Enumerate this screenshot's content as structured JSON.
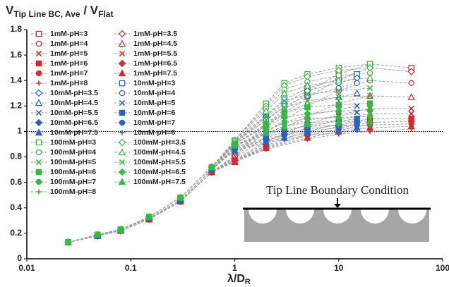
{
  "chart_data": {
    "type": "line",
    "ylabel_parts": [
      {
        "text": "V"
      },
      {
        "text": "Tip Line BC, Ave",
        "sub": true
      },
      {
        "text": " / V"
      },
      {
        "text": "Flat",
        "sub": true
      }
    ],
    "xlabel_parts": [
      {
        "text": "λ/D"
      },
      {
        "text": "R",
        "sub": true
      }
    ],
    "annotation": "Tip Line Boundary Condition",
    "xscale": "log",
    "xlim": [
      0.01,
      100
    ],
    "xticks": [
      0.01,
      0.1,
      1,
      10,
      100
    ],
    "ylim": [
      0,
      1.8
    ],
    "yticks": [
      0,
      0.2,
      0.4,
      0.6,
      0.8,
      1,
      1.2,
      1.4,
      1.6,
      1.8
    ],
    "hline": 1,
    "legend": "upper left",
    "legend_columns": 2,
    "line_color": "#9a9a9a",
    "series": [
      {
        "name": "1mM-pH=3",
        "color": "#d62a2a",
        "marker": "square",
        "x": [
          0.025,
          0.048,
          0.08,
          0.15,
          0.3,
          0.6,
          1,
          2,
          5,
          10,
          20,
          50
        ],
        "values": [
          0.13,
          0.18,
          0.22,
          0.31,
          0.45,
          0.68,
          0.81,
          1.06,
          1.31,
          1.45,
          1.53,
          1.5
        ]
      },
      {
        "name": "1mM-pH=3.5",
        "color": "#d62a2a",
        "marker": "diamond",
        "x": [
          0.025,
          0.048,
          0.08,
          0.15,
          0.3,
          0.6,
          1,
          2,
          5,
          10,
          20,
          50
        ],
        "values": [
          0.13,
          0.18,
          0.22,
          0.31,
          0.45,
          0.68,
          0.81,
          1.04,
          1.27,
          1.41,
          1.5,
          1.47
        ]
      },
      {
        "name": "1mM-pH=4",
        "color": "#d62a2a",
        "marker": "circle",
        "x": [
          0.025,
          0.048,
          0.08,
          0.15,
          0.3,
          0.6,
          1,
          2,
          5,
          10,
          20,
          50
        ],
        "values": [
          0.13,
          0.18,
          0.22,
          0.31,
          0.45,
          0.68,
          0.8,
          1.0,
          1.2,
          1.32,
          1.4,
          1.38
        ]
      },
      {
        "name": "1mM-pH=4.5",
        "color": "#d62a2a",
        "marker": "triangle",
        "x": [
          0.025,
          0.048,
          0.08,
          0.15,
          0.3,
          0.6,
          1,
          2,
          5,
          10,
          20,
          50
        ],
        "values": [
          0.13,
          0.18,
          0.22,
          0.31,
          0.45,
          0.68,
          0.79,
          0.96,
          1.12,
          1.22,
          1.28,
          1.27
        ]
      },
      {
        "name": "1mM-pH=5",
        "color": "#d62a2a",
        "marker": "x",
        "x": [
          0.025,
          0.048,
          0.08,
          0.15,
          0.3,
          0.6,
          1,
          2,
          5,
          10,
          20,
          50
        ],
        "values": [
          0.13,
          0.18,
          0.22,
          0.31,
          0.45,
          0.68,
          0.78,
          0.92,
          1.06,
          1.13,
          1.18,
          1.18
        ]
      },
      {
        "name": "1mM-pH=5.5",
        "color": "#d62a2a",
        "marker": "x",
        "x": [
          0.025,
          0.048,
          0.08,
          0.15,
          0.3,
          0.6,
          1,
          2,
          5,
          10,
          20,
          50
        ],
        "values": [
          0.13,
          0.18,
          0.22,
          0.31,
          0.45,
          0.68,
          0.77,
          0.91,
          1.03,
          1.09,
          1.14,
          1.14
        ]
      },
      {
        "name": "1mM-pH=6",
        "color": "#d62a2a",
        "marker": "square-filled",
        "x": [
          0.025,
          0.048,
          0.08,
          0.15,
          0.3,
          0.6,
          1,
          2,
          5,
          10,
          20,
          50
        ],
        "values": [
          0.13,
          0.18,
          0.22,
          0.31,
          0.45,
          0.68,
          0.77,
          0.89,
          1.0,
          1.06,
          1.1,
          1.1
        ]
      },
      {
        "name": "1mM-pH=6.5",
        "color": "#d62a2a",
        "marker": "diamond-filled",
        "x": [
          0.025,
          0.048,
          0.08,
          0.15,
          0.3,
          0.6,
          1,
          2,
          5,
          10,
          20,
          50
        ],
        "values": [
          0.13,
          0.18,
          0.22,
          0.31,
          0.45,
          0.68,
          0.77,
          0.88,
          0.98,
          1.04,
          1.07,
          1.08
        ]
      },
      {
        "name": "1mM-pH=7",
        "color": "#d62a2a",
        "marker": "circle-filled",
        "x": [
          0.025,
          0.048,
          0.08,
          0.15,
          0.3,
          0.6,
          1,
          2,
          5,
          10,
          20,
          50
        ],
        "values": [
          0.13,
          0.18,
          0.22,
          0.31,
          0.45,
          0.68,
          0.77,
          0.87,
          0.97,
          1.02,
          1.05,
          1.06
        ]
      },
      {
        "name": "1mM-pH=7.5",
        "color": "#d62a2a",
        "marker": "triangle-filled",
        "x": [
          0.025,
          0.048,
          0.08,
          0.15,
          0.3,
          0.6,
          1,
          2,
          5,
          10,
          20,
          50
        ],
        "values": [
          0.13,
          0.18,
          0.22,
          0.31,
          0.45,
          0.68,
          0.76,
          0.87,
          0.95,
          1.0,
          1.03,
          1.04
        ]
      },
      {
        "name": "1mM-pH=8",
        "color": "#d62a2a",
        "marker": "plus",
        "x": [
          0.025,
          0.048,
          0.08,
          0.15,
          0.3,
          0.6,
          1,
          2,
          5,
          10,
          20,
          50
        ],
        "values": [
          0.13,
          0.18,
          0.22,
          0.31,
          0.45,
          0.68,
          0.76,
          0.86,
          0.94,
          0.98,
          1.0,
          1.02
        ]
      },
      {
        "name": "10mM-pH=3",
        "color": "#2a62c4",
        "marker": "square",
        "x": [
          0.025,
          0.048,
          0.08,
          0.15,
          0.3,
          0.6,
          1,
          2,
          3,
          5,
          10,
          15
        ],
        "values": [
          0.13,
          0.18,
          0.23,
          0.32,
          0.46,
          0.7,
          0.92,
          1.13,
          1.25,
          1.34,
          1.41,
          1.45
        ]
      },
      {
        "name": "10mM-pH=3.5",
        "color": "#2a62c4",
        "marker": "diamond",
        "x": [
          0.025,
          0.048,
          0.08,
          0.15,
          0.3,
          0.6,
          1,
          2,
          3,
          5,
          10,
          15
        ],
        "values": [
          0.13,
          0.18,
          0.23,
          0.32,
          0.46,
          0.7,
          0.91,
          1.11,
          1.22,
          1.32,
          1.38,
          1.42
        ]
      },
      {
        "name": "10mM-pH=4",
        "color": "#2a62c4",
        "marker": "circle",
        "x": [
          0.025,
          0.048,
          0.08,
          0.15,
          0.3,
          0.6,
          1,
          2,
          3,
          5,
          10,
          15
        ],
        "values": [
          0.13,
          0.18,
          0.23,
          0.32,
          0.46,
          0.7,
          0.91,
          1.09,
          1.2,
          1.28,
          1.34,
          1.38
        ]
      },
      {
        "name": "10mM-pH=4.5",
        "color": "#2a62c4",
        "marker": "triangle",
        "x": [
          0.025,
          0.048,
          0.08,
          0.15,
          0.3,
          0.6,
          1,
          2,
          3,
          5,
          10,
          15
        ],
        "values": [
          0.13,
          0.18,
          0.23,
          0.32,
          0.46,
          0.7,
          0.9,
          1.05,
          1.14,
          1.22,
          1.27,
          1.3
        ]
      },
      {
        "name": "10mM-pH=5",
        "color": "#2a62c4",
        "marker": "x",
        "x": [
          0.025,
          0.048,
          0.08,
          0.15,
          0.3,
          0.6,
          1,
          2,
          3,
          5,
          10,
          15
        ],
        "values": [
          0.13,
          0.18,
          0.23,
          0.32,
          0.46,
          0.7,
          0.88,
          1.0,
          1.07,
          1.13,
          1.17,
          1.2
        ]
      },
      {
        "name": "10mM-pH=5.5",
        "color": "#2a62c4",
        "marker": "x",
        "x": [
          0.025,
          0.048,
          0.08,
          0.15,
          0.3,
          0.6,
          1,
          2,
          3,
          5,
          10,
          15
        ],
        "values": [
          0.13,
          0.18,
          0.23,
          0.32,
          0.46,
          0.7,
          0.87,
          0.98,
          1.04,
          1.09,
          1.12,
          1.15
        ]
      },
      {
        "name": "10mM-pH=6",
        "color": "#2a62c4",
        "marker": "square-filled",
        "x": [
          0.025,
          0.048,
          0.08,
          0.15,
          0.3,
          0.6,
          1,
          2,
          3,
          5,
          10,
          15
        ],
        "values": [
          0.13,
          0.18,
          0.23,
          0.32,
          0.46,
          0.7,
          0.87,
          0.95,
          1.0,
          1.05,
          1.08,
          1.1
        ]
      },
      {
        "name": "10mM-pH=6.5",
        "color": "#2a62c4",
        "marker": "diamond-filled",
        "x": [
          0.025,
          0.048,
          0.08,
          0.15,
          0.3,
          0.6,
          1,
          2,
          3,
          5,
          10,
          15
        ],
        "values": [
          0.13,
          0.18,
          0.23,
          0.32,
          0.46,
          0.7,
          0.86,
          0.94,
          0.98,
          1.02,
          1.05,
          1.07
        ]
      },
      {
        "name": "10mM-pH=7",
        "color": "#2a62c4",
        "marker": "circle-filled",
        "x": [
          0.025,
          0.048,
          0.08,
          0.15,
          0.3,
          0.6,
          1,
          2,
          3,
          5,
          10,
          15
        ],
        "values": [
          0.13,
          0.18,
          0.23,
          0.32,
          0.46,
          0.7,
          0.86,
          0.93,
          0.97,
          1.0,
          1.03,
          1.05
        ]
      },
      {
        "name": "10mM-pH=7.5",
        "color": "#2a62c4",
        "marker": "triangle-filled",
        "x": [
          0.025,
          0.048,
          0.08,
          0.15,
          0.3,
          0.6,
          1,
          2,
          3,
          5,
          10,
          15
        ],
        "values": [
          0.13,
          0.18,
          0.23,
          0.32,
          0.46,
          0.7,
          0.85,
          0.92,
          0.95,
          0.99,
          1.01,
          1.03
        ]
      },
      {
        "name": "10mM-pH=8",
        "color": "#2a62c4",
        "marker": "plus",
        "x": [
          0.025,
          0.048,
          0.08,
          0.15,
          0.3,
          0.6,
          1,
          2,
          3,
          5,
          10,
          15
        ],
        "values": [
          0.13,
          0.18,
          0.23,
          0.32,
          0.46,
          0.7,
          0.85,
          0.91,
          0.94,
          0.97,
          0.99,
          1.01
        ]
      },
      {
        "name": "100mM-pH=3",
        "color": "#2fbd3c",
        "marker": "square",
        "x": [
          0.025,
          0.048,
          0.08,
          0.15,
          0.3,
          0.6,
          1,
          2,
          3,
          5,
          10,
          20
        ],
        "values": [
          0.13,
          0.19,
          0.23,
          0.33,
          0.48,
          0.72,
          0.93,
          1.22,
          1.38,
          1.45,
          1.5,
          1.53
        ]
      },
      {
        "name": "100mM-pH=3.5",
        "color": "#2fbd3c",
        "marker": "diamond",
        "x": [
          0.025,
          0.048,
          0.08,
          0.15,
          0.3,
          0.6,
          1,
          2,
          3,
          5,
          10,
          20
        ],
        "values": [
          0.13,
          0.19,
          0.23,
          0.33,
          0.48,
          0.72,
          0.93,
          1.2,
          1.36,
          1.43,
          1.48,
          1.5
        ]
      },
      {
        "name": "100mM-pH=4",
        "color": "#2fbd3c",
        "marker": "circle",
        "x": [
          0.025,
          0.048,
          0.08,
          0.15,
          0.3,
          0.6,
          1,
          2,
          3,
          5,
          10,
          20
        ],
        "values": [
          0.13,
          0.19,
          0.23,
          0.33,
          0.48,
          0.72,
          0.93,
          1.18,
          1.33,
          1.39,
          1.44,
          1.46
        ]
      },
      {
        "name": "100mM-pH=4.5",
        "color": "#2fbd3c",
        "marker": "triangle",
        "x": [
          0.025,
          0.048,
          0.08,
          0.15,
          0.3,
          0.6,
          1,
          2,
          3,
          5,
          10,
          20
        ],
        "values": [
          0.13,
          0.19,
          0.23,
          0.33,
          0.48,
          0.72,
          0.92,
          1.16,
          1.3,
          1.36,
          1.4,
          1.42
        ]
      },
      {
        "name": "100mM-pH=5",
        "color": "#2fbd3c",
        "marker": "x",
        "x": [
          0.025,
          0.048,
          0.08,
          0.15,
          0.3,
          0.6,
          1,
          2,
          3,
          5,
          10,
          20
        ],
        "values": [
          0.13,
          0.19,
          0.23,
          0.33,
          0.48,
          0.72,
          0.91,
          1.12,
          1.24,
          1.29,
          1.32,
          1.34
        ]
      },
      {
        "name": "100mM-pH=5.5",
        "color": "#2fbd3c",
        "marker": "x",
        "x": [
          0.025,
          0.048,
          0.08,
          0.15,
          0.3,
          0.6,
          1,
          2,
          3,
          5,
          10,
          20
        ],
        "values": [
          0.13,
          0.19,
          0.23,
          0.33,
          0.48,
          0.72,
          0.91,
          1.09,
          1.19,
          1.24,
          1.27,
          1.28
        ]
      },
      {
        "name": "100mM-pH=6",
        "color": "#2fbd3c",
        "marker": "square-filled",
        "x": [
          0.025,
          0.048,
          0.08,
          0.15,
          0.3,
          0.6,
          1,
          2,
          3,
          5,
          10,
          20
        ],
        "values": [
          0.13,
          0.19,
          0.23,
          0.33,
          0.48,
          0.72,
          0.9,
          1.06,
          1.15,
          1.19,
          1.21,
          1.22
        ]
      },
      {
        "name": "100mM-pH=6.5",
        "color": "#2fbd3c",
        "marker": "diamond-filled",
        "x": [
          0.025,
          0.048,
          0.08,
          0.15,
          0.3,
          0.6,
          1,
          2,
          3,
          5,
          10,
          20
        ],
        "values": [
          0.13,
          0.19,
          0.23,
          0.33,
          0.48,
          0.72,
          0.9,
          1.04,
          1.11,
          1.14,
          1.16,
          1.17
        ]
      },
      {
        "name": "100mM-pH=7",
        "color": "#2fbd3c",
        "marker": "circle-filled",
        "x": [
          0.025,
          0.048,
          0.08,
          0.15,
          0.3,
          0.6,
          1,
          2,
          3,
          5,
          10,
          20
        ],
        "values": [
          0.13,
          0.19,
          0.23,
          0.33,
          0.48,
          0.72,
          0.89,
          1.01,
          1.07,
          1.1,
          1.11,
          1.12
        ]
      },
      {
        "name": "100mM-pH=7.5",
        "color": "#2fbd3c",
        "marker": "triangle-filled",
        "x": [
          0.025,
          0.048,
          0.08,
          0.15,
          0.3,
          0.6,
          1,
          2,
          3,
          5,
          10,
          20
        ],
        "values": [
          0.13,
          0.19,
          0.23,
          0.33,
          0.48,
          0.72,
          0.89,
          0.99,
          1.04,
          1.07,
          1.08,
          1.08
        ]
      },
      {
        "name": "100mM-pH=8",
        "color": "#2fbd3c",
        "marker": "plus",
        "x": [
          0.025,
          0.048,
          0.08,
          0.15,
          0.3,
          0.6,
          1,
          2,
          3,
          5,
          10,
          20
        ],
        "values": [
          0.13,
          0.19,
          0.23,
          0.33,
          0.48,
          0.72,
          0.89,
          0.98,
          1.02,
          1.04,
          1.05,
          1.05
        ]
      }
    ]
  }
}
